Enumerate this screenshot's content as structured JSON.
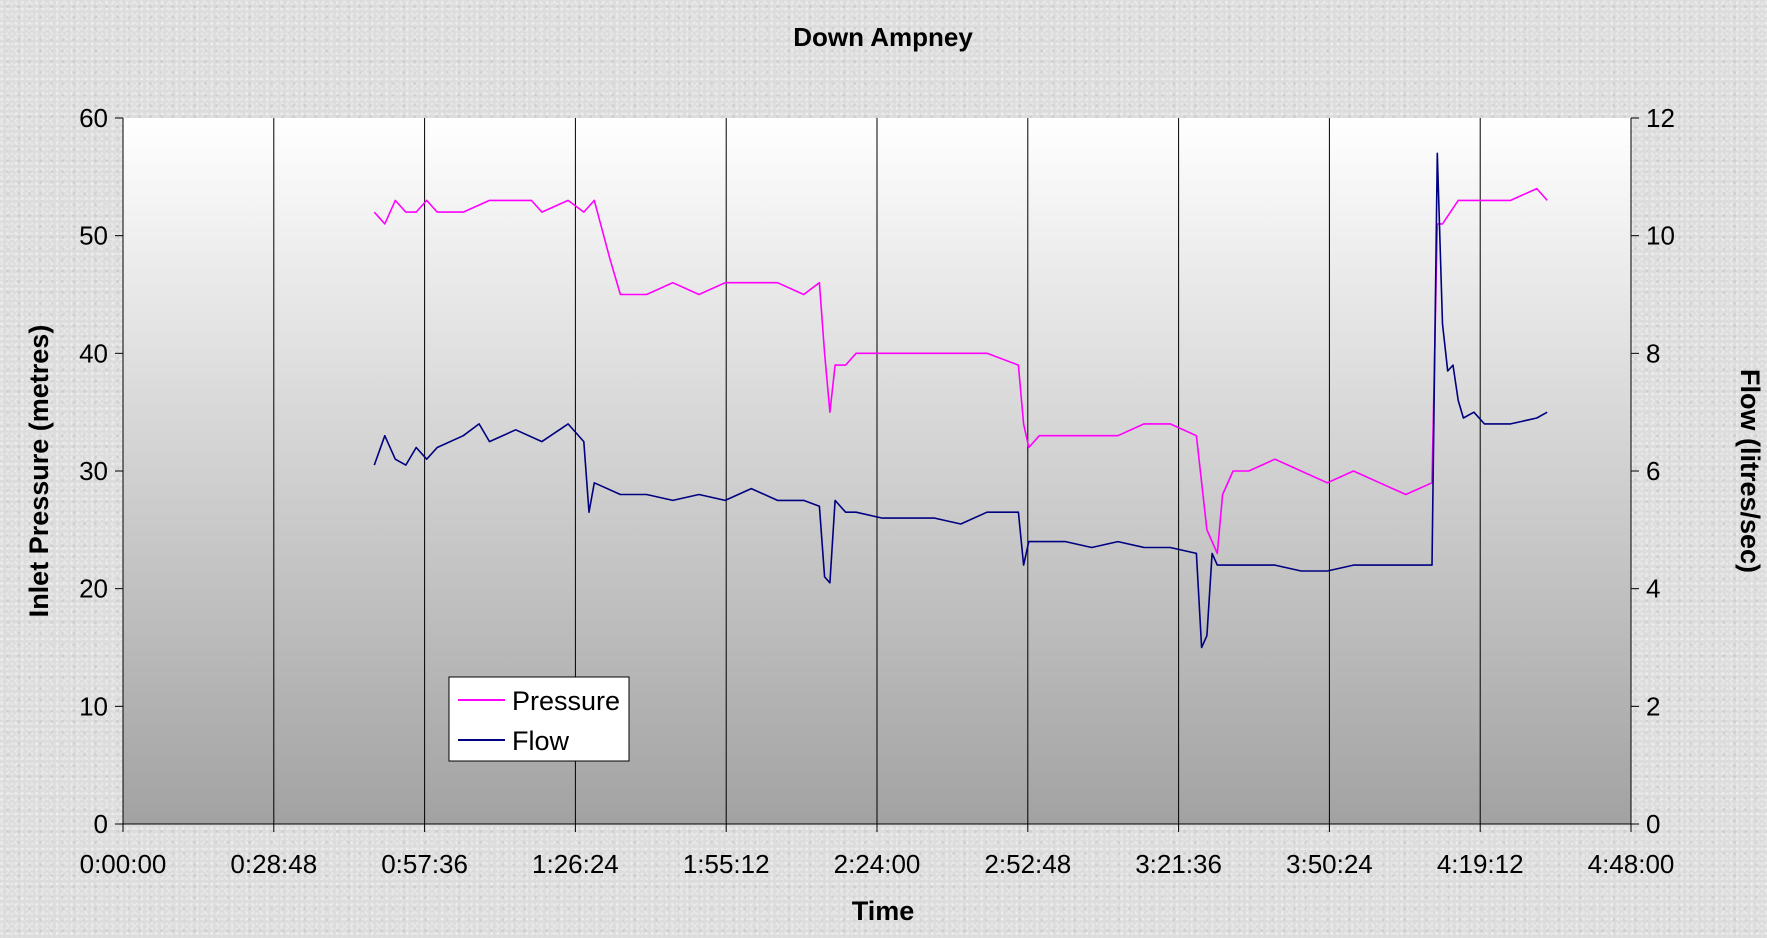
{
  "chart_data": {
    "type": "line",
    "title": "Down Ampney",
    "xlabel": "Time",
    "ylabel": "Inlet Pressure (metres)",
    "y2label": "Flow (litres/sec)",
    "xlim": [
      "0:00:00",
      "4:48:00"
    ],
    "ylim": [
      0,
      60
    ],
    "y2lim": [
      0,
      12
    ],
    "x_tick_labels": [
      "0:00:00",
      "0:28:48",
      "0:57:36",
      "1:26:24",
      "1:55:12",
      "2:24:00",
      "2:52:48",
      "3:21:36",
      "3:50:24",
      "4:19:12",
      "4:48:00"
    ],
    "y_tick_labels": [
      "0",
      "10",
      "20",
      "30",
      "40",
      "50",
      "60"
    ],
    "y2_tick_labels": [
      "0",
      "2",
      "4",
      "6",
      "8",
      "10",
      "12"
    ],
    "grid": "vertical",
    "legend": "lower-left",
    "colors": {
      "pressure": "#ff00ff",
      "flow": "#000080"
    },
    "series": [
      {
        "name": "Pressure",
        "axis": "left",
        "x": [
          "0:48:00",
          "0:50:00",
          "0:52:00",
          "0:54:00",
          "0:56:00",
          "0:58:00",
          "1:00:00",
          "1:05:00",
          "1:10:00",
          "1:15:00",
          "1:18:00",
          "1:20:00",
          "1:25:00",
          "1:28:00",
          "1:30:00",
          "1:33:00",
          "1:35:00",
          "1:40:00",
          "1:45:00",
          "1:50:00",
          "1:55:00",
          "2:00:00",
          "2:05:00",
          "2:10:00",
          "2:13:00",
          "2:14:00",
          "2:15:00",
          "2:16:00",
          "2:18:00",
          "2:20:00",
          "2:25:00",
          "2:30:00",
          "2:35:00",
          "2:40:00",
          "2:45:00",
          "2:51:00",
          "2:52:00",
          "2:53:00",
          "2:55:00",
          "3:00:00",
          "3:05:00",
          "3:10:00",
          "3:15:00",
          "3:20:00",
          "3:25:00",
          "3:27:00",
          "3:29:00",
          "3:30:00",
          "3:32:00",
          "3:35:00",
          "3:40:00",
          "3:45:00",
          "3:50:00",
          "3:55:00",
          "4:00:00",
          "4:05:00",
          "4:10:00",
          "4:11:00",
          "4:12:00",
          "4:15:00",
          "4:20:00",
          "4:25:00",
          "4:30:00",
          "4:32:00"
        ],
        "values": [
          52,
          51,
          53,
          52,
          52,
          53,
          52,
          52,
          53,
          53,
          53,
          52,
          53,
          52,
          53,
          48,
          45,
          45,
          46,
          45,
          46,
          46,
          46,
          45,
          46,
          40,
          35,
          39,
          39,
          40,
          40,
          40,
          40,
          40,
          40,
          39,
          34,
          32,
          33,
          33,
          33,
          33,
          34,
          34,
          33,
          25,
          23,
          28,
          30,
          30,
          31,
          30,
          29,
          30,
          29,
          28,
          29,
          51,
          51,
          53,
          53,
          53,
          54,
          53
        ]
      },
      {
        "name": "Flow",
        "axis": "right",
        "x": [
          "0:48:00",
          "0:50:00",
          "0:52:00",
          "0:54:00",
          "0:56:00",
          "0:58:00",
          "1:00:00",
          "1:05:00",
          "1:08:00",
          "1:10:00",
          "1:15:00",
          "1:20:00",
          "1:25:00",
          "1:28:00",
          "1:29:00",
          "1:30:00",
          "1:35:00",
          "1:40:00",
          "1:45:00",
          "1:50:00",
          "1:55:00",
          "2:00:00",
          "2:05:00",
          "2:10:00",
          "2:13:00",
          "2:14:00",
          "2:15:00",
          "2:16:00",
          "2:18:00",
          "2:20:00",
          "2:25:00",
          "2:30:00",
          "2:35:00",
          "2:40:00",
          "2:45:00",
          "2:51:00",
          "2:52:00",
          "2:53:00",
          "2:55:00",
          "3:00:00",
          "3:05:00",
          "3:10:00",
          "3:15:00",
          "3:20:00",
          "3:25:00",
          "3:26:00",
          "3:27:00",
          "3:28:00",
          "3:29:00",
          "3:30:00",
          "3:35:00",
          "3:40:00",
          "3:45:00",
          "3:50:00",
          "3:55:00",
          "4:00:00",
          "4:05:00",
          "4:10:00",
          "4:11:00",
          "4:12:00",
          "4:13:00",
          "4:14:00",
          "4:15:00",
          "4:16:00",
          "4:18:00",
          "4:20:00",
          "4:25:00",
          "4:30:00",
          "4:32:00"
        ],
        "values": [
          6.1,
          6.6,
          6.2,
          6.1,
          6.4,
          6.2,
          6.4,
          6.6,
          6.8,
          6.5,
          6.7,
          6.5,
          6.8,
          6.5,
          5.3,
          5.8,
          5.6,
          5.6,
          5.5,
          5.6,
          5.5,
          5.7,
          5.5,
          5.5,
          5.4,
          4.2,
          4.1,
          5.5,
          5.3,
          5.3,
          5.2,
          5.2,
          5.2,
          5.1,
          5.3,
          5.3,
          4.4,
          4.8,
          4.8,
          4.8,
          4.7,
          4.8,
          4.7,
          4.7,
          4.6,
          3.0,
          3.2,
          4.6,
          4.4,
          4.4,
          4.4,
          4.4,
          4.3,
          4.3,
          4.4,
          4.4,
          4.4,
          4.4,
          11.4,
          8.5,
          7.7,
          7.8,
          7.2,
          6.9,
          7.0,
          6.8,
          6.8,
          6.9,
          7.0
        ]
      }
    ]
  }
}
